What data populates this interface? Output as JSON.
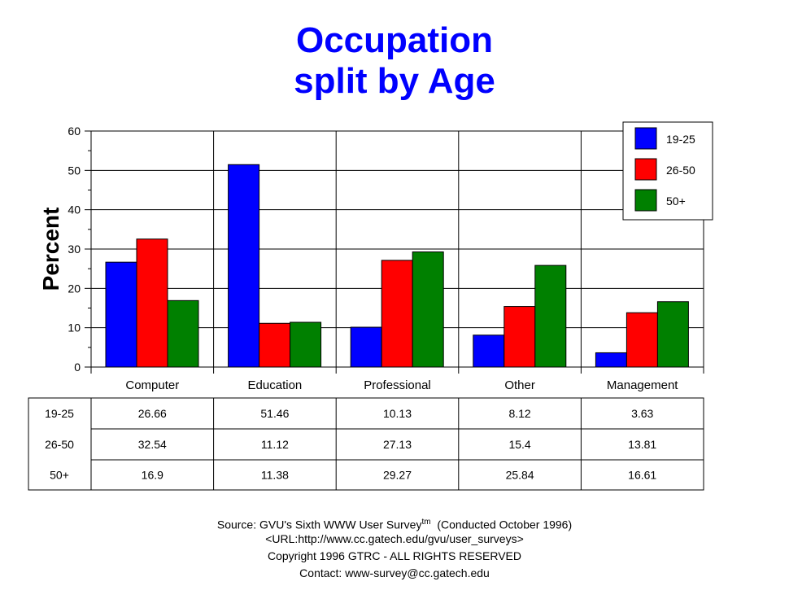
{
  "chart_data": {
    "type": "bar",
    "title": "Occupation split by Age",
    "title_lines": [
      "Occupation",
      "split by Age"
    ],
    "ylabel": "Percent",
    "xlabel": "",
    "ylim": [
      0,
      60
    ],
    "yticks": [
      0,
      10,
      20,
      30,
      40,
      50,
      60
    ],
    "grid": true,
    "legend_position": "top-right",
    "categories": [
      "Computer",
      "Education",
      "Professional",
      "Other",
      "Management"
    ],
    "series": [
      {
        "name": "19-25",
        "color": "#0000ff",
        "values": [
          26.66,
          51.46,
          10.13,
          8.12,
          3.63
        ]
      },
      {
        "name": "26-50",
        "color": "#ff0000",
        "values": [
          32.54,
          11.12,
          27.13,
          15.4,
          13.81
        ]
      },
      {
        "name": "50+",
        "color": "#008000",
        "values": [
          16.9,
          11.38,
          29.27,
          25.84,
          16.61
        ]
      }
    ],
    "table_labels": [
      "26.66",
      "51.46",
      "10.13",
      "8.12",
      "3.63",
      "32.54",
      "11.12",
      "27.13",
      "15.4",
      "13.81",
      "16.9",
      "11.38",
      "29.27",
      "25.84",
      "16.61"
    ]
  },
  "footer": {
    "source_prefix": "Source: GVU's Sixth WWW User Survey",
    "source_sup": "tm",
    "source_suffix": "  (Conducted October 1996)",
    "url": "<URL:http://www.cc.gatech.edu/gvu/user_surveys>",
    "copyright": "Copyright 1996 GTRC -  ALL RIGHTS RESERVED",
    "contact": "Contact: www-survey@cc.gatech.edu"
  }
}
